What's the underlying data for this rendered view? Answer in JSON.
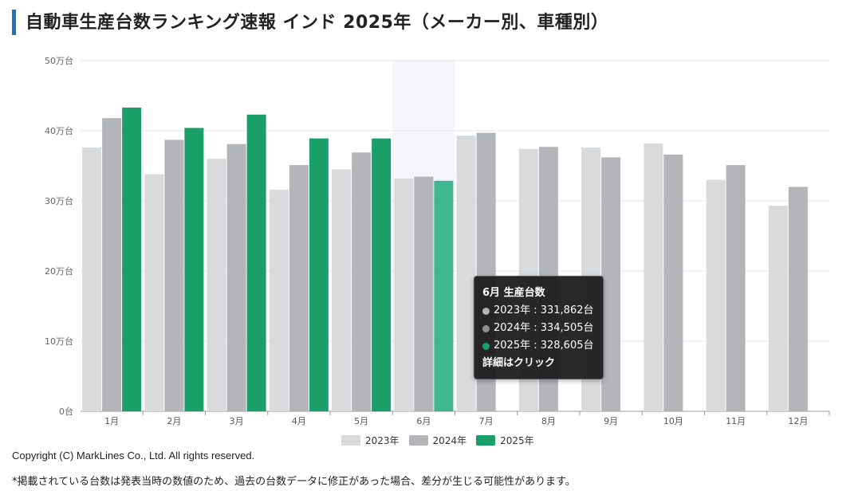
{
  "page": {
    "title": "自動車生産台数ランキング速報 インド 2025年（メーカー別、車種別）",
    "copyright": "Copyright (C) MarkLines Co., Ltd. All rights reserved.",
    "note": "*掲載されている台数は発表当時の数値のため、過去の台数データに修正があった場合、差分が生じる可能性があります。"
  },
  "tooltip": {
    "title": "6月 生産台数",
    "rows": [
      {
        "label": "2023年 : 331,862台",
        "color": "#b3b3b3"
      },
      {
        "label": "2024年 : 334,505台",
        "color": "#8f9094"
      },
      {
        "label": "2025年 : 328,605台",
        "color": "#1a9e6a"
      }
    ],
    "link": "詳細はクリック"
  },
  "chart_data": {
    "type": "bar",
    "categories": [
      "1月",
      "2月",
      "3月",
      "4月",
      "5月",
      "6月",
      "7月",
      "8月",
      "9月",
      "10月",
      "11月",
      "12月"
    ],
    "y_ticks": [
      "0台",
      "10万台",
      "20万台",
      "30万台",
      "40万台",
      "50万台"
    ],
    "ylim": [
      0,
      500000
    ],
    "highlight_category": "6月",
    "legend_position": "bottom",
    "grid": true,
    "series": [
      {
        "name": "2023年",
        "color": "#d9dadc",
        "values": [
          376000,
          338000,
          360000,
          316000,
          345000,
          331862,
          393000,
          374000,
          376000,
          382000,
          330000,
          293000
        ]
      },
      {
        "name": "2024年",
        "color": "#b4b5b9",
        "values": [
          418000,
          387000,
          381000,
          351000,
          369000,
          334505,
          397000,
          377000,
          362000,
          366000,
          351000,
          320000
        ]
      },
      {
        "name": "2025年",
        "color": "#1a9e6a",
        "values": [
          433000,
          404000,
          423000,
          389000,
          389000,
          328605,
          null,
          null,
          null,
          null,
          null,
          null
        ]
      }
    ]
  }
}
